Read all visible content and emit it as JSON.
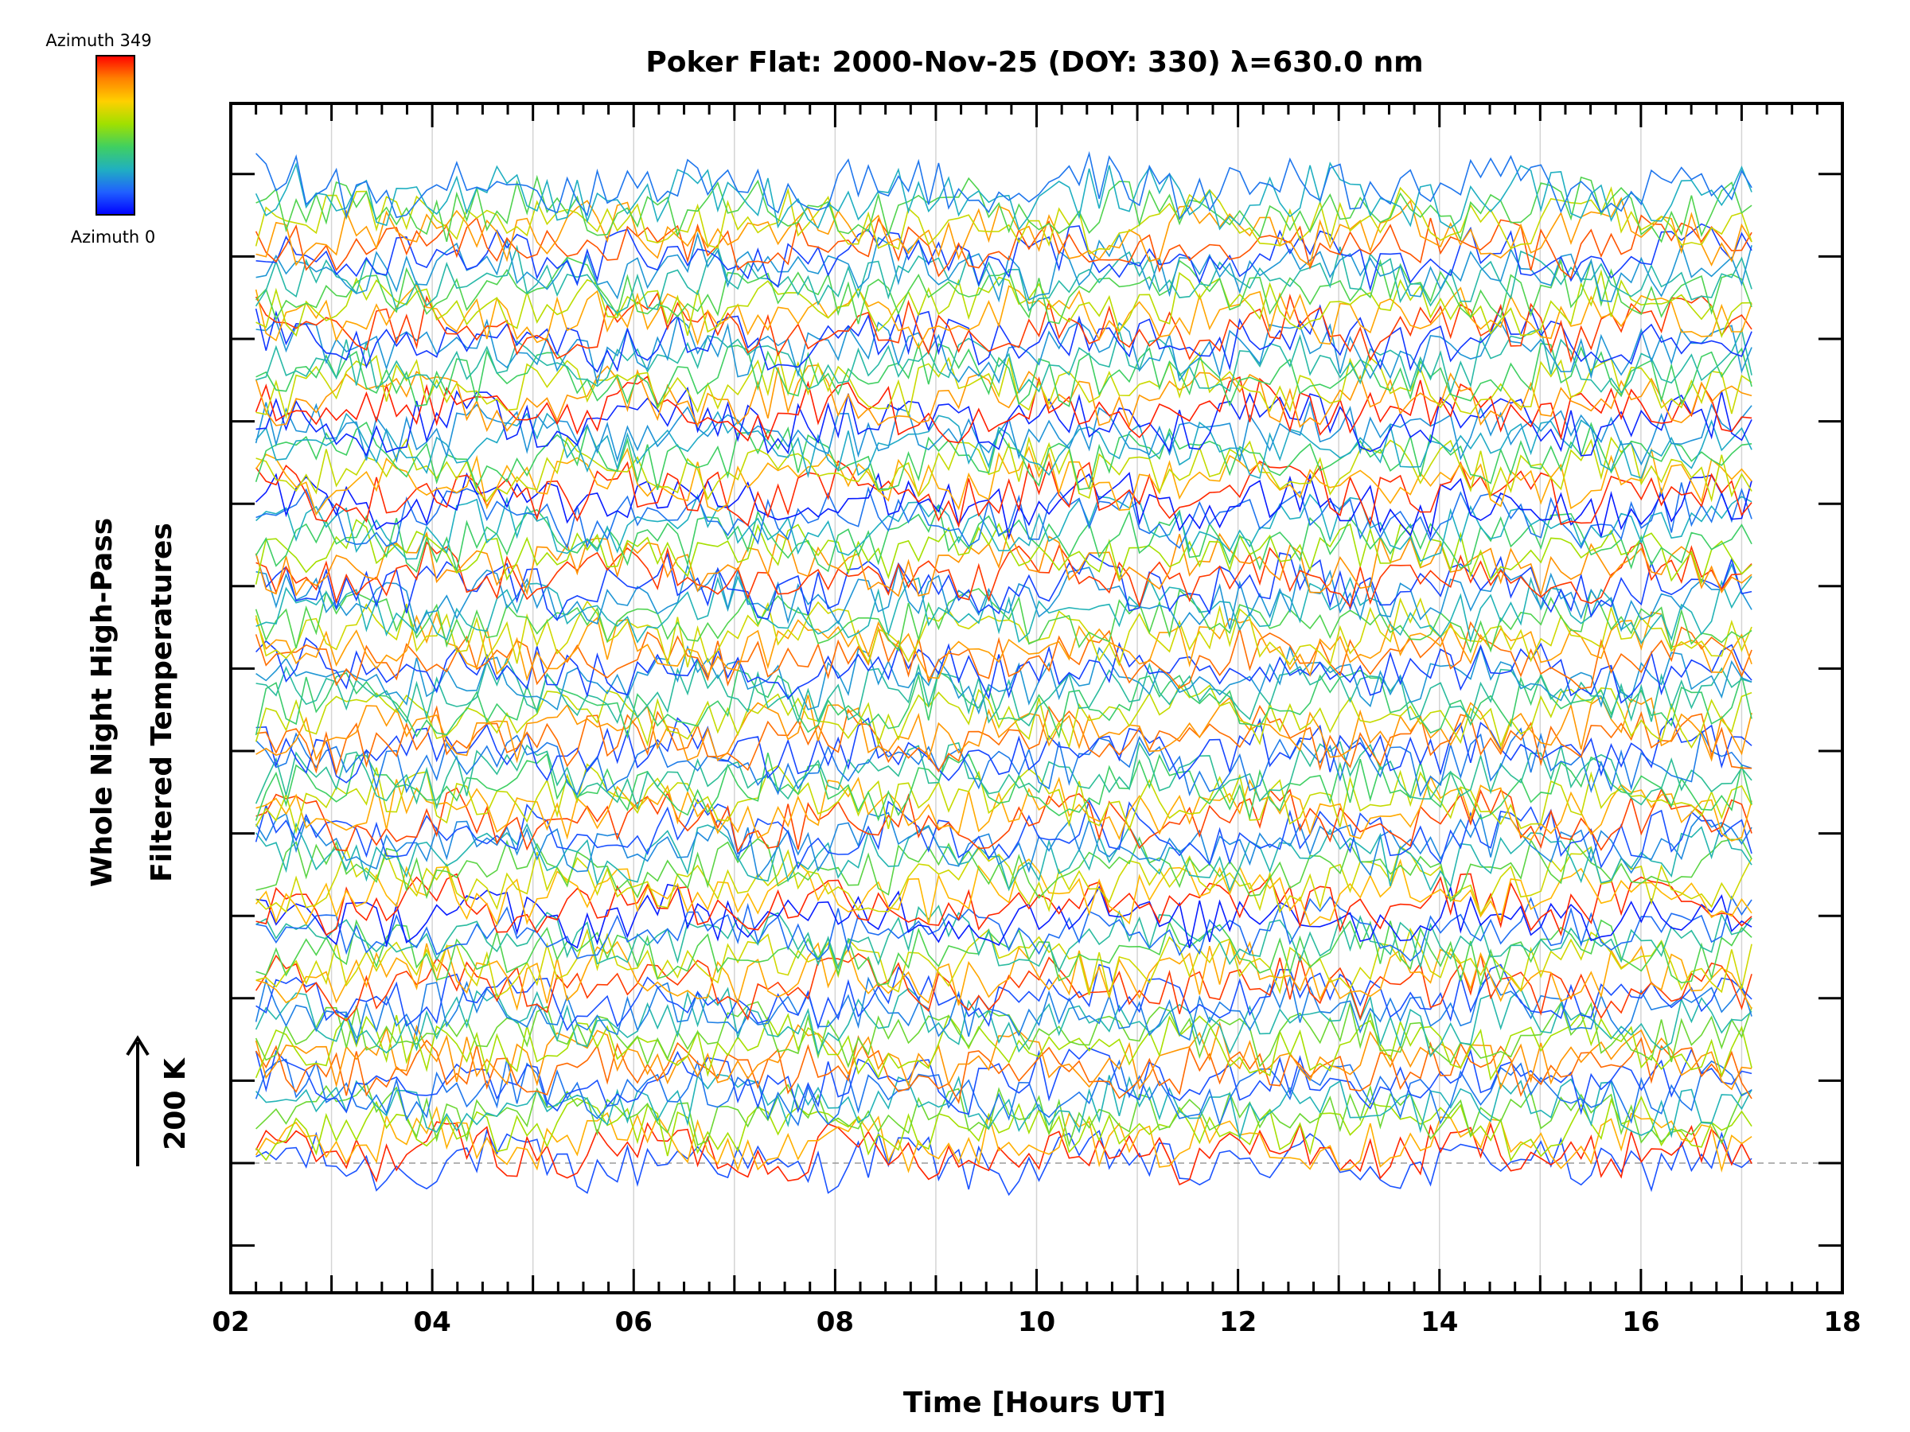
{
  "chart_data": {
    "type": "line",
    "title": "Poker Flat: 2000-Nov-25 (DOY: 330) λ=630.0 nm",
    "xlabel": "Time [Hours UT]",
    "ylabel_lines": [
      "Whole Night High-Pass",
      "Filtered Temperatures"
    ],
    "scale_label": "200 K",
    "scale_value_K": 200,
    "xlim": [
      2,
      18
    ],
    "x_tick_labels": [
      "02",
      "04",
      "06",
      "08",
      "10",
      "12",
      "14",
      "16",
      "18"
    ],
    "x_tick_values": [
      2,
      4,
      6,
      8,
      10,
      12,
      14,
      16,
      18
    ],
    "data_time_range": [
      2.25,
      17.1
    ],
    "grid": true,
    "colorbar": {
      "top_label": "Azimuth 349",
      "bottom_label": "Azimuth 0",
      "azimuth_range": [
        0,
        349
      ],
      "colors": [
        "#ff0000",
        "#ff8000",
        "#ffd000",
        "#a0e000",
        "#40d060",
        "#20b0c0",
        "#2060ff",
        "#0000ff"
      ]
    },
    "series_color_pattern": [
      0.08,
      0.92,
      0.78,
      0.6,
      0.45,
      0.32,
      0.2
    ],
    "bands": [
      {
        "baseline_K": 0,
        "series_count": 14
      },
      {
        "baseline_K": 200,
        "series_count": 14
      },
      {
        "baseline_K": 400,
        "series_count": 14
      },
      {
        "baseline_K": 600,
        "series_count": 14
      },
      {
        "baseline_K": 800,
        "series_count": 14
      },
      {
        "baseline_K": 1000,
        "series_count": 14
      }
    ],
    "baseline_dashed_K": 0,
    "noise_amplitude_K": 30
  }
}
